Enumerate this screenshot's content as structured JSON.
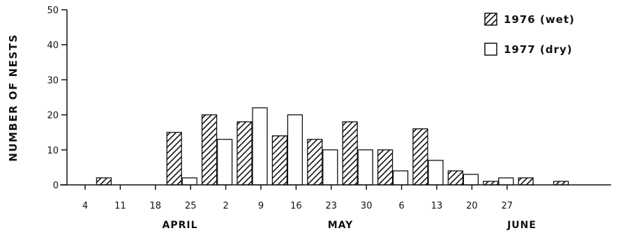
{
  "chart_data": {
    "type": "bar",
    "ylabel": "NUMBER OF NESTS",
    "ylim": [
      0,
      50
    ],
    "yticks": [
      0,
      10,
      20,
      30,
      40,
      50
    ],
    "x_tick_labels": [
      "4",
      "11",
      "18",
      "25",
      "2",
      "9",
      "16",
      "23",
      "30",
      "6",
      "13",
      "20",
      "27"
    ],
    "months": [
      "APRIL",
      "MAY",
      "JUNE"
    ],
    "grid": false,
    "legend_position": "top-right",
    "series": [
      {
        "name": "1976 (wet)",
        "pattern": "hatched",
        "values": [
          0,
          2,
          0,
          15,
          20,
          18,
          14,
          13,
          18,
          10,
          16,
          4,
          1,
          2,
          1
        ]
      },
      {
        "name": "1977 (dry)",
        "pattern": "open",
        "values": [
          0,
          0,
          0,
          2,
          13,
          22,
          20,
          10,
          10,
          4,
          7,
          3,
          2,
          0,
          0
        ]
      }
    ]
  },
  "colors": {
    "ink": "#111111",
    "background": "#ffffff"
  }
}
